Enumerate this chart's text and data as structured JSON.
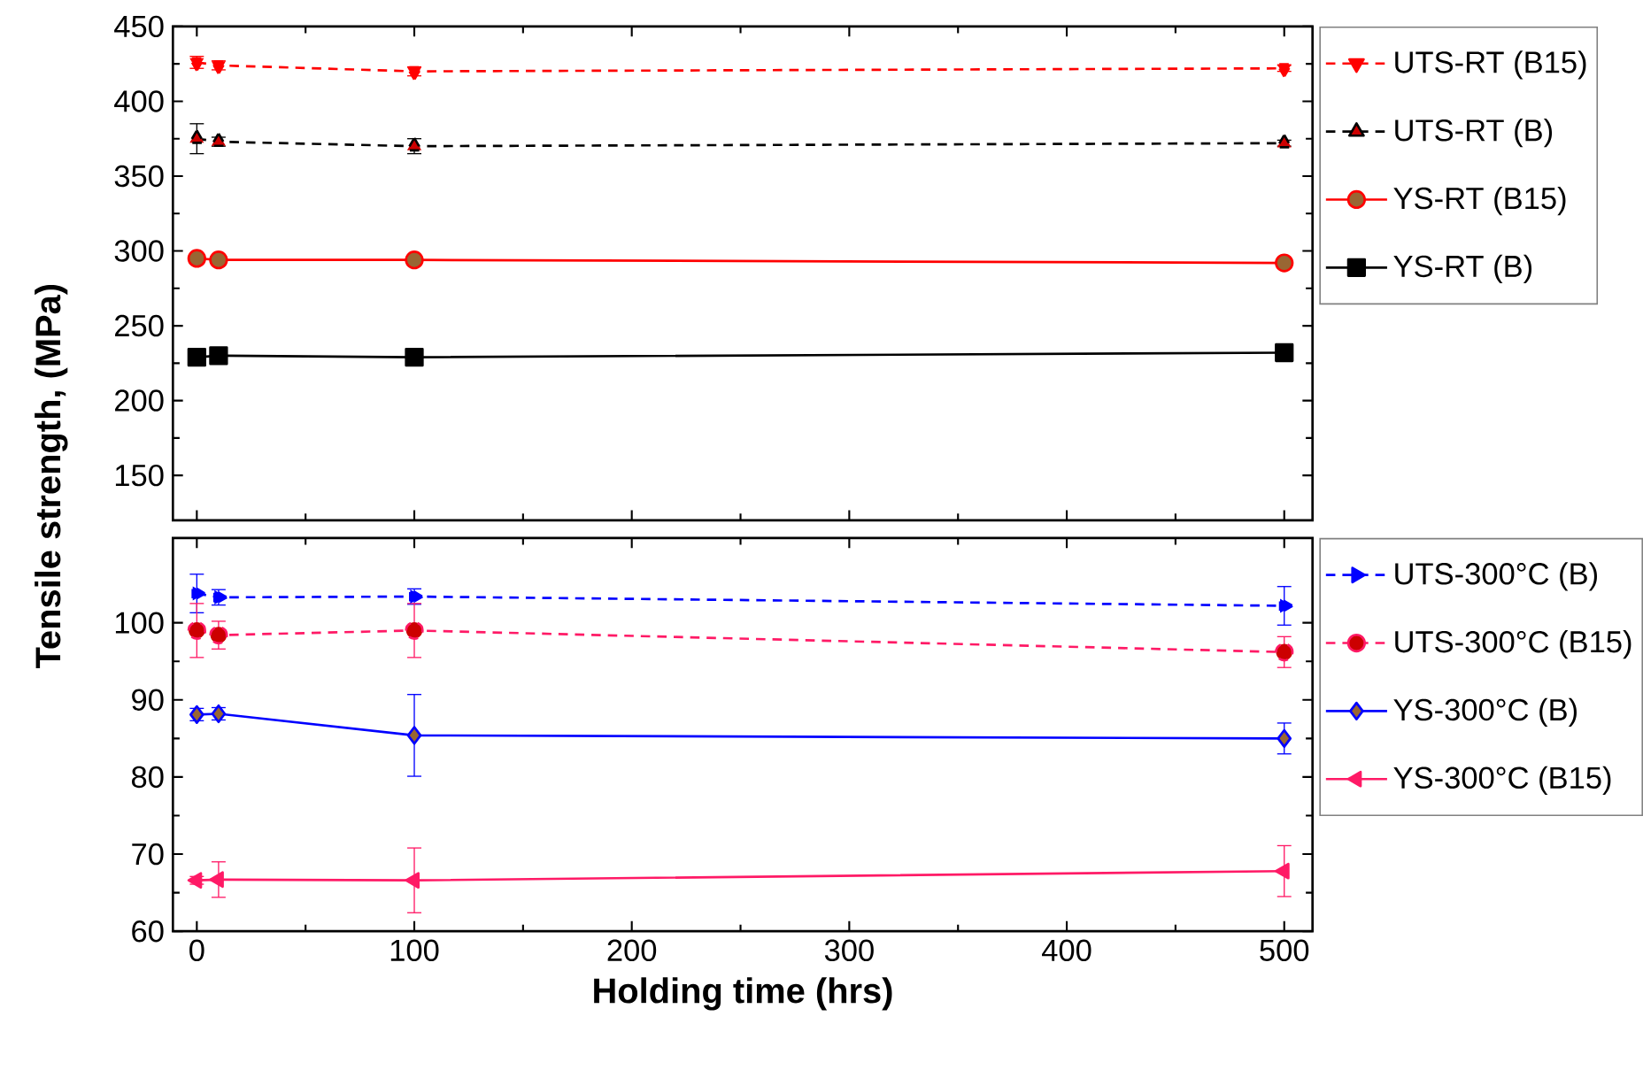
{
  "chart_data": [
    {
      "type": "line",
      "ylabel": "Tensile strength, (MPa)",
      "x": [
        0,
        10,
        100,
        500
      ],
      "xlim": [
        -11,
        513
      ],
      "xticks": [
        0,
        100,
        200,
        300,
        400,
        500
      ],
      "ylim": [
        120,
        450
      ],
      "yticks": [
        150,
        200,
        250,
        300,
        350,
        400,
        450
      ],
      "tick_labels": "y",
      "legend": "right",
      "grid": false,
      "series": [
        {
          "name": "UTS-RT (B15)",
          "color": "#ff0000",
          "marker": "triangle down",
          "line_style": "dashed",
          "values": [
            426,
            424,
            420,
            422
          ],
          "errors": [
            4,
            3,
            3,
            2
          ]
        },
        {
          "name": "UTS-RT (B)",
          "color": "#000000",
          "marker": "triangle",
          "line_style": "dashed",
          "values": [
            375,
            373,
            370,
            372
          ],
          "errors": [
            10,
            3,
            5,
            2
          ]
        },
        {
          "name": "YS-RT (B15)",
          "color": "#ff0000",
          "marker": "circle",
          "line_style": "solid",
          "values": [
            295,
            294,
            294,
            292
          ],
          "errors": [
            2,
            2,
            2,
            2
          ]
        },
        {
          "name": "YS-RT (B)",
          "color": "#000000",
          "marker": "square",
          "line_style": "solid",
          "values": [
            229,
            230,
            229,
            232
          ],
          "errors": [
            2,
            2,
            2,
            2
          ]
        }
      ]
    },
    {
      "type": "line",
      "xlabel": "Holding time (hrs)",
      "x": [
        0,
        10,
        100,
        500
      ],
      "xlim": [
        -11,
        513
      ],
      "xticks": [
        0,
        100,
        200,
        300,
        400,
        500
      ],
      "ylim": [
        60,
        111
      ],
      "yticks": [
        60,
        70,
        80,
        90,
        100
      ],
      "legend": "right",
      "grid": false,
      "series": [
        {
          "name": "UTS-300°C (B)",
          "color": "#0000ff",
          "marker": "triangle right",
          "line_style": "dashed",
          "values": [
            103.8,
            103.3,
            103.4,
            102.2
          ],
          "errors": [
            2.5,
            1,
            1,
            2.5
          ]
        },
        {
          "name": "UTS-300°C (B15)",
          "color": "#ff1a66",
          "marker": "circle",
          "line_style": "dashed",
          "values": [
            99,
            98.4,
            99,
            96.2
          ],
          "errors": [
            3.5,
            1.8,
            3.5,
            2
          ]
        },
        {
          "name": "YS-300°C (B)",
          "color": "#0000ff",
          "marker": "diamond",
          "line_style": "solid",
          "values": [
            88.1,
            88.2,
            85.4,
            85
          ],
          "errors": [
            0.8,
            0.8,
            5.3,
            2
          ]
        },
        {
          "name": "YS-300°C (B15)",
          "color": "#ff1a66",
          "marker": "triangle left",
          "line_style": "solid",
          "values": [
            66.6,
            66.7,
            66.6,
            67.8
          ],
          "errors": [
            0.5,
            2.3,
            4.2,
            3.3
          ]
        }
      ]
    }
  ]
}
